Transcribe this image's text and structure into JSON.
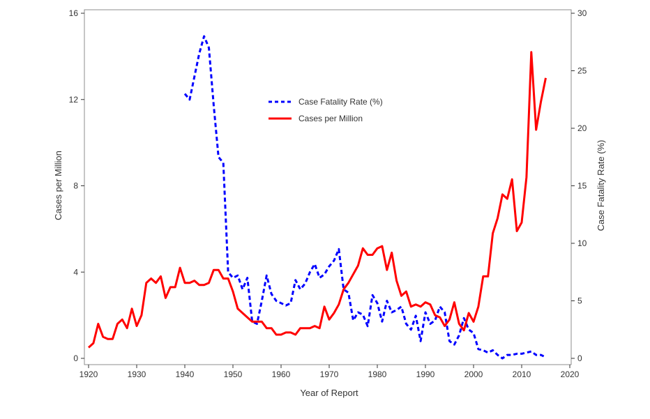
{
  "chart_data": {
    "type": "line",
    "xlabel": "Year of Report",
    "ylabel_left": "Cases per Million",
    "ylabel_right": "Case Fatality Rate (%)",
    "xlim": [
      1920,
      2020
    ],
    "ylim_left": [
      0,
      16
    ],
    "ylim_right": [
      0,
      30
    ],
    "x_ticks": [
      1920,
      1930,
      1940,
      1950,
      1960,
      1970,
      1980,
      1990,
      2000,
      2010,
      2020
    ],
    "y_left_ticks": [
      0,
      4,
      8,
      12,
      16
    ],
    "y_right_ticks": [
      0,
      5,
      10,
      15,
      20,
      25,
      30
    ],
    "legend_position": "upper-center",
    "grid": false,
    "series": [
      {
        "name": "Case Fatality Rate (%)",
        "axis": "right",
        "color": "#0000ff",
        "style": "dashed",
        "x": [
          1940,
          1941,
          1942,
          1943,
          1944,
          1945,
          1946,
          1947,
          1948,
          1949,
          1950,
          1951,
          1952,
          1953,
          1954,
          1955,
          1956,
          1957,
          1958,
          1959,
          1960,
          1961,
          1962,
          1963,
          1964,
          1965,
          1966,
          1967,
          1968,
          1969,
          1970,
          1971,
          1972,
          1973,
          1974,
          1975,
          1976,
          1977,
          1978,
          1979,
          1980,
          1981,
          1982,
          1983,
          1984,
          1985,
          1986,
          1987,
          1988,
          1989,
          1990,
          1991,
          1992,
          1993,
          1994,
          1995,
          1996,
          1997,
          1998,
          1999,
          2000,
          2001,
          2002,
          2003,
          2004,
          2005,
          2006,
          2007,
          2008,
          2009,
          2010,
          2011,
          2012,
          2013,
          2014,
          2015
        ],
        "values": [
          23.0,
          22.5,
          24.5,
          26.5,
          28.0,
          27.0,
          22.0,
          17.5,
          17.0,
          7.5,
          7.0,
          7.2,
          6.0,
          7.0,
          3.2,
          3.0,
          5.0,
          7.2,
          5.6,
          5.0,
          4.8,
          4.6,
          4.8,
          6.8,
          6.0,
          6.5,
          7.5,
          8.2,
          7.0,
          7.3,
          8.0,
          8.5,
          9.5,
          6.0,
          5.7,
          3.3,
          4.0,
          3.8,
          2.8,
          5.5,
          4.8,
          3.2,
          5.0,
          4.0,
          4.2,
          4.5,
          3.0,
          2.5,
          3.7,
          1.5,
          4.0,
          3.0,
          3.3,
          4.5,
          4.0,
          1.5,
          1.2,
          2.0,
          3.5,
          2.5,
          2.2,
          0.8,
          0.7,
          0.5,
          0.7,
          0.3,
          0.0,
          0.3,
          0.3,
          0.4,
          0.4,
          0.5,
          0.6,
          0.3,
          0.3,
          0.1
        ]
      },
      {
        "name": "Cases per Million",
        "axis": "left",
        "color": "#ff0000",
        "style": "solid",
        "x": [
          1920,
          1921,
          1922,
          1923,
          1924,
          1925,
          1926,
          1927,
          1928,
          1929,
          1930,
          1931,
          1932,
          1933,
          1934,
          1935,
          1936,
          1937,
          1938,
          1939,
          1940,
          1941,
          1942,
          1943,
          1944,
          1945,
          1946,
          1947,
          1948,
          1949,
          1950,
          1951,
          1952,
          1953,
          1954,
          1955,
          1956,
          1957,
          1958,
          1959,
          1960,
          1961,
          1962,
          1963,
          1964,
          1965,
          1966,
          1967,
          1968,
          1969,
          1970,
          1971,
          1972,
          1973,
          1974,
          1975,
          1976,
          1977,
          1978,
          1979,
          1980,
          1981,
          1982,
          1983,
          1984,
          1985,
          1986,
          1987,
          1988,
          1989,
          1990,
          1991,
          1992,
          1993,
          1994,
          1995,
          1996,
          1997,
          1998,
          1999,
          2000,
          2001,
          2002,
          2003,
          2004,
          2005,
          2006,
          2007,
          2008,
          2009,
          2010,
          2011,
          2012,
          2013,
          2014,
          2015
        ],
        "values": [
          0.5,
          0.7,
          1.6,
          1.0,
          0.9,
          0.9,
          1.6,
          1.8,
          1.4,
          2.3,
          1.5,
          2.0,
          3.5,
          3.7,
          3.5,
          3.8,
          2.8,
          3.3,
          3.3,
          4.2,
          3.5,
          3.5,
          3.6,
          3.4,
          3.4,
          3.5,
          4.1,
          4.1,
          3.7,
          3.7,
          3.1,
          2.3,
          2.1,
          1.9,
          1.7,
          1.7,
          1.7,
          1.4,
          1.4,
          1.1,
          1.1,
          1.2,
          1.2,
          1.1,
          1.4,
          1.4,
          1.4,
          1.5,
          1.4,
          2.4,
          1.8,
          2.1,
          2.5,
          3.2,
          3.5,
          3.9,
          4.3,
          5.1,
          4.8,
          4.8,
          5.1,
          5.2,
          4.1,
          4.9,
          3.6,
          2.9,
          3.1,
          2.4,
          2.5,
          2.4,
          2.6,
          2.5,
          2.0,
          1.9,
          1.5,
          1.8,
          2.6,
          1.6,
          1.3,
          2.1,
          1.7,
          2.4,
          3.8,
          3.8,
          5.8,
          6.5,
          7.6,
          7.4,
          8.3,
          5.9,
          6.3,
          8.4,
          14.2,
          10.6,
          11.9,
          13.0
        ]
      }
    ]
  }
}
